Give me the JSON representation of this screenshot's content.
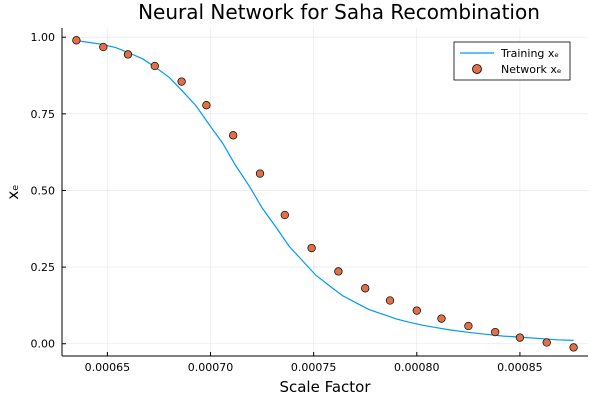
{
  "chart_data": {
    "type": "line",
    "title": "Neural Network for Saha Recombination",
    "xlabel": "Scale Factor",
    "ylabel": "xₑ",
    "xlim": [
      0.000628,
      0.000883
    ],
    "ylim": [
      -0.04,
      1.03
    ],
    "x_ticks": [
      0.00065,
      0.0007,
      0.00075,
      0.0008,
      0.00085
    ],
    "x_tick_labels": [
      "0.00065",
      "0.00070",
      "0.00075",
      "0.00080",
      "0.00085"
    ],
    "y_ticks": [
      0.0,
      0.25,
      0.5,
      0.75,
      1.0
    ],
    "y_tick_labels": [
      "0.00",
      "0.25",
      "0.50",
      "0.75",
      "1.00"
    ],
    "grid": true,
    "legend_position": "top-right",
    "series": [
      {
        "name": "Training xₑ",
        "kind": "line",
        "color": "#009AFA",
        "x": [
          0.000634,
          0.00064,
          0.000647,
          0.000654,
          0.00066,
          0.000667,
          0.000673,
          0.00068,
          0.000686,
          0.000693,
          0.000699,
          0.000706,
          0.000712,
          0.000719,
          0.000725,
          0.000732,
          0.000738,
          0.000745,
          0.000751,
          0.000758,
          0.000764,
          0.000771,
          0.000777,
          0.000784,
          0.00079,
          0.000797,
          0.000803,
          0.00081,
          0.000816,
          0.000823,
          0.000829,
          0.000836,
          0.000842,
          0.000849,
          0.000855,
          0.000862,
          0.000868,
          0.000876
        ],
        "y": [
          0.99,
          0.984,
          0.977,
          0.966,
          0.95,
          0.93,
          0.903,
          0.869,
          0.827,
          0.776,
          0.718,
          0.653,
          0.583,
          0.512,
          0.443,
          0.378,
          0.319,
          0.268,
          0.224,
          0.187,
          0.157,
          0.132,
          0.111,
          0.095,
          0.081,
          0.069,
          0.06,
          0.052,
          0.045,
          0.039,
          0.034,
          0.029,
          0.025,
          0.022,
          0.019,
          0.016,
          0.013,
          0.011
        ]
      },
      {
        "name": "Network xₑ",
        "kind": "scatter",
        "color": "#E26F46",
        "x": [
          0.000635,
          0.000648,
          0.00066,
          0.000673,
          0.000686,
          0.000698,
          0.000711,
          0.000724,
          0.000736,
          0.000749,
          0.000762,
          0.000775,
          0.000787,
          0.0008,
          0.000812,
          0.000825,
          0.000838,
          0.00085,
          0.000863,
          0.000876
        ],
        "y": [
          0.99,
          0.968,
          0.944,
          0.906,
          0.855,
          0.778,
          0.68,
          0.555,
          0.42,
          0.312,
          0.236,
          0.181,
          0.141,
          0.108,
          0.082,
          0.058,
          0.038,
          0.02,
          0.004,
          -0.012
        ]
      }
    ]
  }
}
